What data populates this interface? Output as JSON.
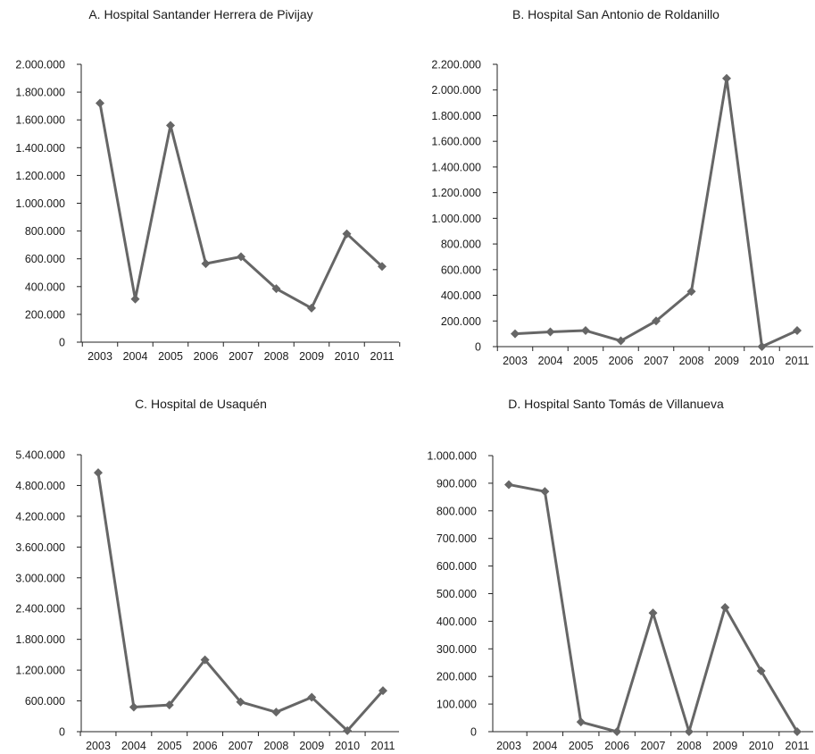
{
  "colors": {
    "series": "#666666",
    "axis": "#222222",
    "text": "#1a1a1a"
  },
  "chart_data": [
    {
      "type": "line",
      "title": "A. Hospital Santander Herrera de Pivijay",
      "xlabel": "",
      "ylabel": "",
      "categories": [
        "2003",
        "2004",
        "2005",
        "2006",
        "2007",
        "2008",
        "2009",
        "2010",
        "2011"
      ],
      "values": [
        1720000,
        310000,
        1560000,
        565000,
        615000,
        385000,
        245000,
        780000,
        545000
      ],
      "ylim": [
        0,
        2000000
      ],
      "yticks": [
        0,
        200000,
        400000,
        600000,
        800000,
        1000000,
        1200000,
        1400000,
        1600000,
        1800000,
        2000000
      ],
      "ytick_labels": [
        "0",
        "200.000",
        "400.000",
        "600.000",
        "800.000",
        "1.000.000",
        "1.200.000",
        "1.400.000",
        "1.600.000",
        "1.800.000",
        "2.000.000"
      ],
      "grid": false,
      "marker": "diamond"
    },
    {
      "type": "line",
      "title": "B. Hospital San Antonio de Roldanillo",
      "xlabel": "",
      "ylabel": "",
      "categories": [
        "2003",
        "2004",
        "2005",
        "2006",
        "2007",
        "2008",
        "2009",
        "2010",
        "2011"
      ],
      "values": [
        100000,
        115000,
        125000,
        45000,
        200000,
        430000,
        2090000,
        0,
        125000
      ],
      "ylim": [
        0,
        2200000
      ],
      "yticks": [
        0,
        200000,
        400000,
        600000,
        800000,
        1000000,
        1200000,
        1400000,
        1600000,
        1800000,
        2000000,
        2200000
      ],
      "ytick_labels": [
        "0",
        "200.000",
        "400.000",
        "600.000",
        "800.000",
        "1.000.000",
        "1.200.000",
        "1.400.000",
        "1.600.000",
        "1.800.000",
        "2.000.000",
        "2.200.000"
      ],
      "grid": false,
      "marker": "diamond"
    },
    {
      "type": "line",
      "title": "C. Hospital de Usaquén",
      "xlabel": "",
      "ylabel": "",
      "categories": [
        "2003",
        "2004",
        "2005",
        "2006",
        "2007",
        "2008",
        "2009",
        "2010",
        "2011"
      ],
      "values": [
        5050000,
        480000,
        520000,
        1400000,
        580000,
        380000,
        670000,
        20000,
        800000
      ],
      "ylim": [
        0,
        5400000
      ],
      "yticks": [
        0,
        600000,
        1200000,
        1800000,
        2400000,
        3000000,
        3600000,
        4200000,
        4800000,
        5400000
      ],
      "ytick_labels": [
        "0",
        "600.000",
        "1.200.000",
        "1.800.000",
        "2.400.000",
        "3.000.000",
        "3.600.000",
        "4.200.000",
        "4.800.000",
        "5.400.000"
      ],
      "grid": false,
      "marker": "diamond"
    },
    {
      "type": "line",
      "title": "D. Hospital Santo Tomás de Villanueva",
      "xlabel": "",
      "ylabel": "",
      "categories": [
        "2003",
        "2004",
        "2005",
        "2006",
        "2007",
        "2008",
        "2009",
        "2010",
        "2011"
      ],
      "values": [
        895000,
        870000,
        35000,
        0,
        430000,
        0,
        450000,
        220000,
        0
      ],
      "ylim": [
        0,
        1000000
      ],
      "yticks": [
        0,
        100000,
        200000,
        300000,
        400000,
        500000,
        600000,
        700000,
        800000,
        900000,
        1000000
      ],
      "ytick_labels": [
        "0",
        "100.000",
        "200.000",
        "300.000",
        "400.000",
        "500.000",
        "600.000",
        "700.000",
        "800.000",
        "900.000",
        "1.000.000"
      ],
      "grid": false,
      "marker": "diamond"
    }
  ]
}
